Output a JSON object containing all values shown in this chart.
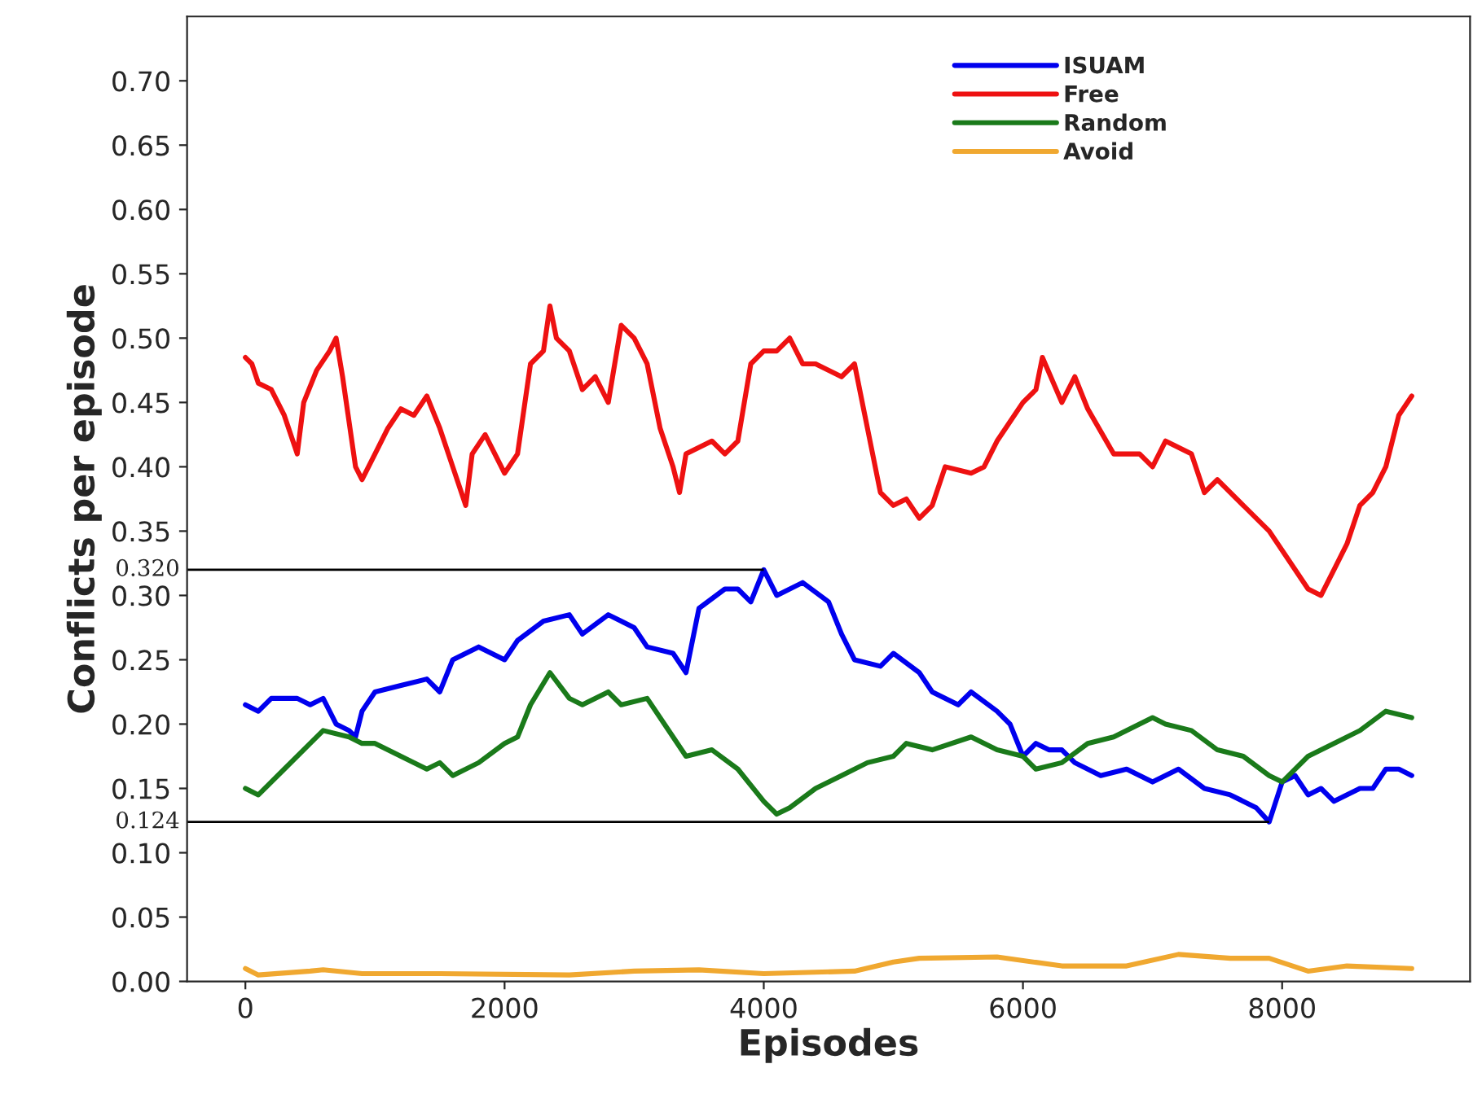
{
  "chart_data": {
    "type": "line",
    "xlabel": "Episodes",
    "ylabel": "Conflicts per episode",
    "xlim": [
      -450,
      9450
    ],
    "xticks": [
      0,
      2000,
      4000,
      6000,
      8000
    ],
    "ylim": [
      0,
      0.75
    ],
    "yticks": [
      {
        "value": 0,
        "label": "0.00"
      },
      {
        "value": 0.05,
        "label": "0.05"
      },
      {
        "value": 0.1,
        "label": "0.10"
      },
      {
        "value": 0.15,
        "label": "0.15"
      },
      {
        "value": 0.2,
        "label": "0.20"
      },
      {
        "value": 0.25,
        "label": "0.25"
      },
      {
        "value": 0.3,
        "label": "0.30"
      },
      {
        "value": 0.35,
        "label": "0.35"
      },
      {
        "value": 0.4,
        "label": "0.40"
      },
      {
        "value": 0.45,
        "label": "0.45"
      },
      {
        "value": 0.5,
        "label": "0.50"
      },
      {
        "value": 0.55,
        "label": "0.55"
      },
      {
        "value": 0.6,
        "label": "0.60"
      },
      {
        "value": 0.65,
        "label": "0.65"
      },
      {
        "value": 0.7,
        "label": "0.70"
      }
    ],
    "grid": false,
    "legend": "top right",
    "marker": "none",
    "line_style": "solid",
    "ref_lines": [
      {
        "axis": "y",
        "value": 0.32,
        "label": "0.320",
        "color": "#000000"
      },
      {
        "axis": "y",
        "value": 0.124,
        "label": "0.124",
        "color": "#000000"
      }
    ],
    "series": [
      {
        "name": "ISUAM",
        "color": "#0000ee",
        "x": [
          0,
          100,
          200,
          400,
          500,
          600,
          700,
          800,
          850,
          900,
          1000,
          1200,
          1400,
          1500,
          1600,
          1800,
          2000,
          2100,
          2300,
          2500,
          2600,
          2800,
          2900,
          3000,
          3100,
          3300,
          3400,
          3500,
          3700,
          3800,
          3900,
          4000,
          4100,
          4300,
          4500,
          4600,
          4700,
          4900,
          5000,
          5200,
          5300,
          5500,
          5600,
          5800,
          5900,
          6000,
          6100,
          6200,
          6300,
          6400,
          6600,
          6800,
          7000,
          7200,
          7400,
          7600,
          7800,
          7900,
          8000,
          8100,
          8200,
          8300,
          8400,
          8600,
          8700,
          8800,
          8900,
          9000
        ],
        "values": [
          0.215,
          0.21,
          0.22,
          0.22,
          0.215,
          0.22,
          0.2,
          0.195,
          0.19,
          0.21,
          0.225,
          0.23,
          0.235,
          0.225,
          0.25,
          0.26,
          0.25,
          0.265,
          0.28,
          0.285,
          0.27,
          0.285,
          0.28,
          0.275,
          0.26,
          0.255,
          0.24,
          0.29,
          0.305,
          0.305,
          0.295,
          0.32,
          0.3,
          0.31,
          0.295,
          0.27,
          0.25,
          0.245,
          0.255,
          0.24,
          0.225,
          0.215,
          0.225,
          0.21,
          0.2,
          0.175,
          0.185,
          0.18,
          0.18,
          0.17,
          0.16,
          0.165,
          0.155,
          0.165,
          0.15,
          0.145,
          0.135,
          0.124,
          0.155,
          0.16,
          0.145,
          0.15,
          0.14,
          0.15,
          0.15,
          0.165,
          0.165,
          0.16
        ]
      },
      {
        "name": "Free",
        "color": "#ee1111",
        "x": [
          0,
          50,
          100,
          200,
          300,
          400,
          450,
          550,
          650,
          700,
          750,
          850,
          900,
          1000,
          1100,
          1200,
          1300,
          1400,
          1500,
          1600,
          1700,
          1750,
          1850,
          2000,
          2100,
          2200,
          2300,
          2350,
          2400,
          2500,
          2600,
          2700,
          2800,
          2900,
          3000,
          3100,
          3200,
          3300,
          3350,
          3400,
          3600,
          3700,
          3800,
          3900,
          4000,
          4100,
          4200,
          4300,
          4400,
          4600,
          4700,
          4800,
          4900,
          5000,
          5100,
          5200,
          5300,
          5400,
          5600,
          5700,
          5800,
          6000,
          6100,
          6150,
          6300,
          6400,
          6500,
          6700,
          6900,
          7000,
          7100,
          7300,
          7400,
          7500,
          7700,
          7900,
          8100,
          8200,
          8300,
          8400,
          8500,
          8600,
          8700,
          8800,
          8900,
          9000
        ],
        "values": [
          0.485,
          0.48,
          0.465,
          0.46,
          0.44,
          0.41,
          0.45,
          0.475,
          0.49,
          0.5,
          0.47,
          0.4,
          0.39,
          0.41,
          0.43,
          0.445,
          0.44,
          0.455,
          0.43,
          0.4,
          0.37,
          0.41,
          0.425,
          0.395,
          0.41,
          0.48,
          0.49,
          0.525,
          0.5,
          0.49,
          0.46,
          0.47,
          0.45,
          0.51,
          0.5,
          0.48,
          0.43,
          0.4,
          0.38,
          0.41,
          0.42,
          0.41,
          0.42,
          0.48,
          0.49,
          0.49,
          0.5,
          0.48,
          0.48,
          0.47,
          0.48,
          0.43,
          0.38,
          0.37,
          0.375,
          0.36,
          0.37,
          0.4,
          0.395,
          0.4,
          0.42,
          0.45,
          0.46,
          0.485,
          0.45,
          0.47,
          0.445,
          0.41,
          0.41,
          0.4,
          0.42,
          0.41,
          0.38,
          0.39,
          0.37,
          0.35,
          0.32,
          0.305,
          0.3,
          0.32,
          0.34,
          0.37,
          0.38,
          0.4,
          0.44,
          0.455
        ]
      },
      {
        "name": "Random",
        "color": "#1a7a1a",
        "x": [
          0,
          100,
          300,
          500,
          600,
          800,
          900,
          1000,
          1200,
          1400,
          1500,
          1600,
          1800,
          2000,
          2100,
          2200,
          2350,
          2500,
          2600,
          2800,
          2900,
          3100,
          3300,
          3400,
          3600,
          3800,
          4000,
          4100,
          4200,
          4400,
          4600,
          4800,
          5000,
          5100,
          5300,
          5600,
          5800,
          6000,
          6100,
          6300,
          6500,
          6700,
          7000,
          7100,
          7300,
          7500,
          7700,
          7900,
          8000,
          8200,
          8400,
          8600,
          8800,
          9000
        ],
        "values": [
          0.15,
          0.145,
          0.165,
          0.185,
          0.195,
          0.19,
          0.185,
          0.185,
          0.175,
          0.165,
          0.17,
          0.16,
          0.17,
          0.185,
          0.19,
          0.215,
          0.24,
          0.22,
          0.215,
          0.225,
          0.215,
          0.22,
          0.19,
          0.175,
          0.18,
          0.165,
          0.14,
          0.13,
          0.135,
          0.15,
          0.16,
          0.17,
          0.175,
          0.185,
          0.18,
          0.19,
          0.18,
          0.175,
          0.165,
          0.17,
          0.185,
          0.19,
          0.205,
          0.2,
          0.195,
          0.18,
          0.175,
          0.16,
          0.155,
          0.175,
          0.185,
          0.195,
          0.21,
          0.205
        ]
      },
      {
        "name": "Avoid",
        "color": "#f0a830",
        "x": [
          0,
          100,
          500,
          600,
          900,
          1500,
          2500,
          3000,
          3500,
          4000,
          4700,
          5000,
          5200,
          5800,
          6300,
          6800,
          7200,
          7600,
          7900,
          8200,
          8500,
          9000
        ],
        "values": [
          0.01,
          0.005,
          0.008,
          0.009,
          0.006,
          0.006,
          0.005,
          0.008,
          0.009,
          0.006,
          0.008,
          0.015,
          0.018,
          0.019,
          0.012,
          0.012,
          0.021,
          0.018,
          0.018,
          0.008,
          0.012,
          0.01
        ]
      }
    ]
  }
}
